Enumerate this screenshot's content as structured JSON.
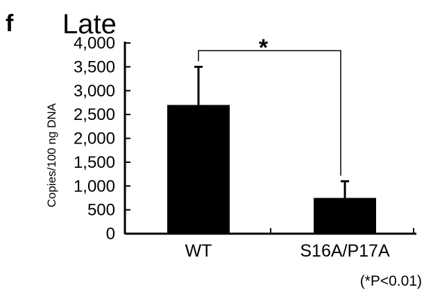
{
  "chart_data": {
    "type": "bar",
    "panel_label": "f",
    "title": "Late",
    "ylabel": "Copies/100 ng DNA",
    "xlabel": "",
    "ylim": [
      0,
      4000
    ],
    "yticks": [
      "0",
      "500",
      "1,000",
      "1,500",
      "2,000",
      "2,500",
      "3,000",
      "3,500",
      "4,000"
    ],
    "ytick_values": [
      0,
      500,
      1000,
      1500,
      2000,
      2500,
      3000,
      3500,
      4000
    ],
    "categories": [
      "WT",
      "S16A/P17A"
    ],
    "values": [
      2700,
      750
    ],
    "error_upper": [
      3500,
      1100
    ],
    "colors": {
      "bar": "#000000"
    },
    "significance": {
      "between": [
        "WT",
        "S16A/P17A"
      ],
      "marker": "*"
    },
    "note": "(*P<0.01)"
  }
}
